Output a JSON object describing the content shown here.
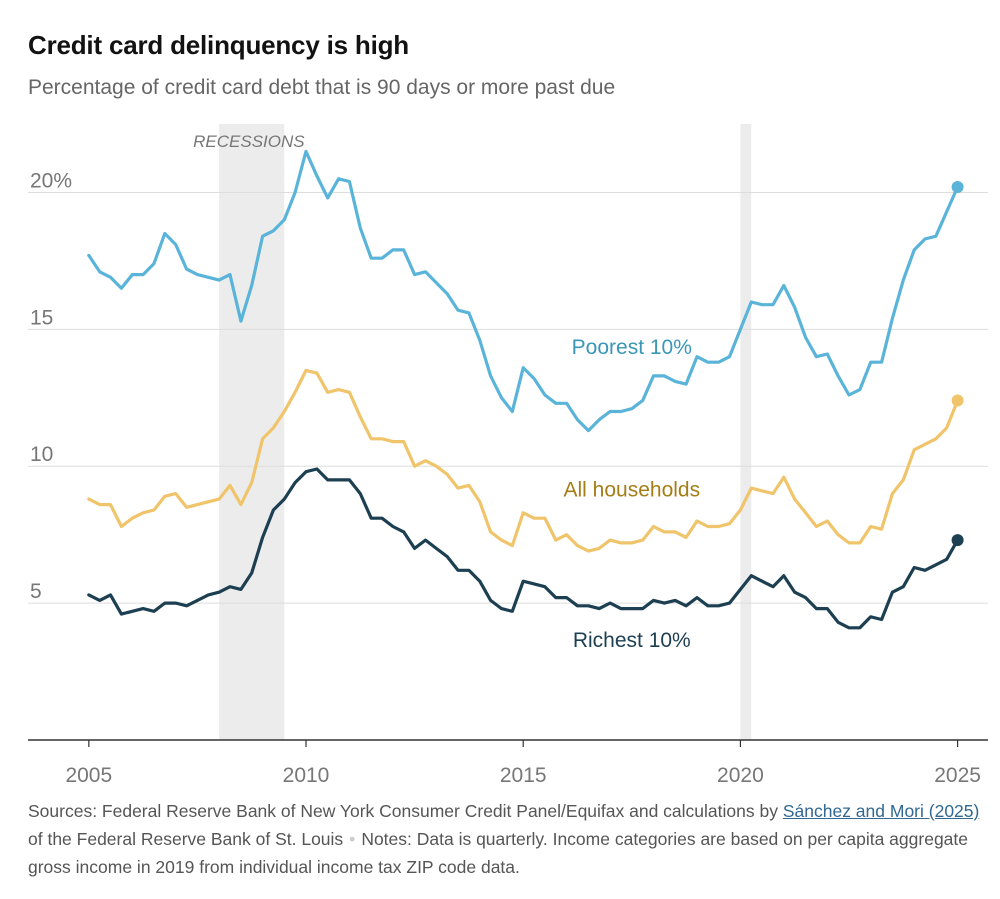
{
  "title": "Credit card delinquency is high",
  "subtitle": "Percentage of credit card debt that is 90 days or more past due",
  "colors": {
    "poorest": "#5ab4d9",
    "all": "#f0c46a",
    "richest": "#1d3f52",
    "all_label": "#a47d17",
    "poorest_label": "#3b97b8"
  },
  "chart_data": {
    "type": "line",
    "title": "Credit card delinquency is high",
    "xlabel": "",
    "ylabel": "",
    "xlim": [
      2003.6,
      2025.7
    ],
    "ylim": [
      0,
      22.5
    ],
    "x_ticks": [
      2005,
      2010,
      2015,
      2020,
      2025
    ],
    "x_tick_labels": [
      "2005",
      "2010",
      "2015",
      "2020",
      "2025"
    ],
    "y_ticks": [
      5,
      10,
      15,
      20
    ],
    "y_tick_labels": [
      "5",
      "10",
      "15",
      "20%"
    ],
    "recessions": [
      [
        2008.0,
        2009.5
      ],
      [
        2020.0,
        2020.25
      ]
    ],
    "recession_label": "RECESSIONS",
    "x_start": 2005.0,
    "x_step": 0.25,
    "series": [
      {
        "name": "Poorest 10%",
        "key": "poorest",
        "label": "Poorest 10%",
        "values": [
          17.7,
          17.1,
          16.9,
          16.5,
          17.0,
          17.0,
          17.4,
          18.5,
          18.1,
          17.2,
          17.0,
          16.9,
          16.8,
          17.0,
          15.3,
          16.6,
          18.4,
          18.6,
          19.0,
          20.0,
          21.5,
          20.6,
          19.8,
          20.5,
          20.4,
          18.7,
          17.6,
          17.6,
          17.9,
          17.9,
          17.0,
          17.1,
          16.7,
          16.3,
          15.7,
          15.6,
          14.6,
          13.3,
          12.5,
          12.0,
          13.6,
          13.2,
          12.6,
          12.3,
          12.3,
          11.7,
          11.3,
          11.7,
          12.0,
          12.0,
          12.1,
          12.4,
          13.3,
          13.3,
          13.1,
          13.0,
          14.0,
          13.8,
          13.8,
          14.0,
          15.0,
          16.0,
          15.9,
          15.9,
          16.6,
          15.8,
          14.7,
          14.0,
          14.1,
          13.3,
          12.6,
          12.8,
          13.8,
          13.8,
          15.4,
          16.8,
          17.9,
          18.3,
          18.4,
          19.3,
          20.2
        ]
      },
      {
        "name": "All households",
        "key": "all",
        "label": "All households",
        "values": [
          8.8,
          8.6,
          8.6,
          7.8,
          8.1,
          8.3,
          8.4,
          8.9,
          9.0,
          8.5,
          8.6,
          8.7,
          8.8,
          9.3,
          8.6,
          9.4,
          11.0,
          11.4,
          12.0,
          12.7,
          13.5,
          13.4,
          12.7,
          12.8,
          12.7,
          11.8,
          11.0,
          11.0,
          10.9,
          10.9,
          10.0,
          10.2,
          10.0,
          9.7,
          9.2,
          9.3,
          8.7,
          7.6,
          7.3,
          7.1,
          8.3,
          8.1,
          8.1,
          7.3,
          7.5,
          7.1,
          6.9,
          7.0,
          7.3,
          7.2,
          7.2,
          7.3,
          7.8,
          7.6,
          7.6,
          7.4,
          8.0,
          7.8,
          7.8,
          7.9,
          8.4,
          9.2,
          9.1,
          9.0,
          9.6,
          8.8,
          8.3,
          7.8,
          8.0,
          7.5,
          7.2,
          7.2,
          7.8,
          7.7,
          9.0,
          9.5,
          10.6,
          10.8,
          11.0,
          11.4,
          12.4
        ]
      },
      {
        "name": "Richest 10%",
        "key": "richest",
        "label": "Richest 10%",
        "values": [
          5.3,
          5.1,
          5.3,
          4.6,
          4.7,
          4.8,
          4.7,
          5.0,
          5.0,
          4.9,
          5.1,
          5.3,
          5.4,
          5.6,
          5.5,
          6.1,
          7.4,
          8.4,
          8.8,
          9.4,
          9.8,
          9.9,
          9.5,
          9.5,
          9.5,
          9.0,
          8.1,
          8.1,
          7.8,
          7.6,
          7.0,
          7.3,
          7.0,
          6.7,
          6.2,
          6.2,
          5.8,
          5.1,
          4.8,
          4.7,
          5.8,
          5.7,
          5.6,
          5.2,
          5.2,
          4.9,
          4.9,
          4.8,
          5.0,
          4.8,
          4.8,
          4.8,
          5.1,
          5.0,
          5.1,
          4.9,
          5.2,
          4.9,
          4.9,
          5.0,
          5.5,
          6.0,
          5.8,
          5.6,
          6.0,
          5.4,
          5.2,
          4.8,
          4.8,
          4.3,
          4.1,
          4.1,
          4.5,
          4.4,
          5.4,
          5.6,
          6.3,
          6.2,
          6.4,
          6.6,
          7.3
        ]
      }
    ],
    "annotations": [
      {
        "key": "poorest",
        "text": "Poorest 10%",
        "x": 2017.5,
        "y": 14.1
      },
      {
        "key": "all",
        "text": "All households",
        "x": 2017.5,
        "y": 8.9
      },
      {
        "key": "richest",
        "text": "Richest 10%",
        "x": 2017.5,
        "y": 3.4
      }
    ]
  },
  "footer": {
    "sources_prefix": "Sources: Federal Reserve Bank of New York Consumer Credit Panel/Equifax and calculations by ",
    "sources_link": "Sánchez and Mori (2025)",
    "sources_suffix": " of the Federal Reserve Bank of St. Louis",
    "notes": "Notes: Data is quarterly. Income categories are based on per capita aggregate gross income in 2019 from individual income tax ZIP code data."
  }
}
